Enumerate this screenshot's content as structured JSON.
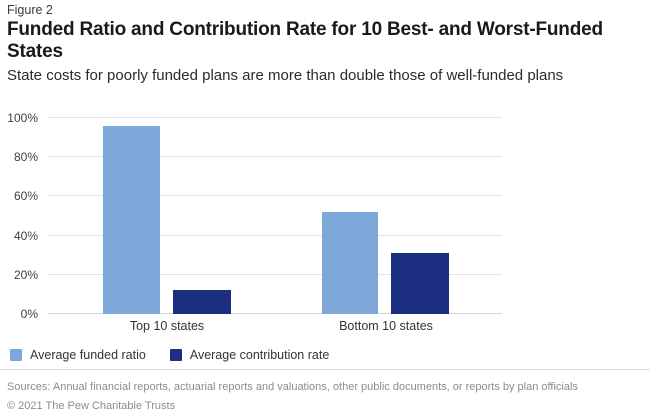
{
  "figure_label": "Figure 2",
  "title": "Funded Ratio and Contribution Rate for 10 Best- and Worst-Funded States",
  "subtitle": "State costs for poorly funded plans are more than double those of well-funded plans",
  "chart_data": {
    "type": "bar",
    "categories": [
      "Top 10 states",
      "Bottom 10 states"
    ],
    "series": [
      {
        "name": "Average funded ratio",
        "color": "#7ea7d9",
        "values": [
          96,
          52
        ]
      },
      {
        "name": "Average contribution rate",
        "color": "#1c2e80",
        "values": [
          12,
          31
        ]
      }
    ],
    "title": "Funded Ratio and Contribution Rate for 10 Best- and Worst-Funded States",
    "xlabel": "",
    "ylabel": "",
    "ylim": [
      0,
      100
    ],
    "ytick_labels": [
      "0%",
      "20%",
      "40%",
      "60%",
      "80%",
      "100%"
    ],
    "grid": true,
    "legend_position": "bottom"
  },
  "footer": {
    "sources": "Sources: Annual financial reports, actuarial reports and valuations, other public documents, or reports by plan officials",
    "copyright": "© 2021 The Pew Charitable Trusts"
  }
}
